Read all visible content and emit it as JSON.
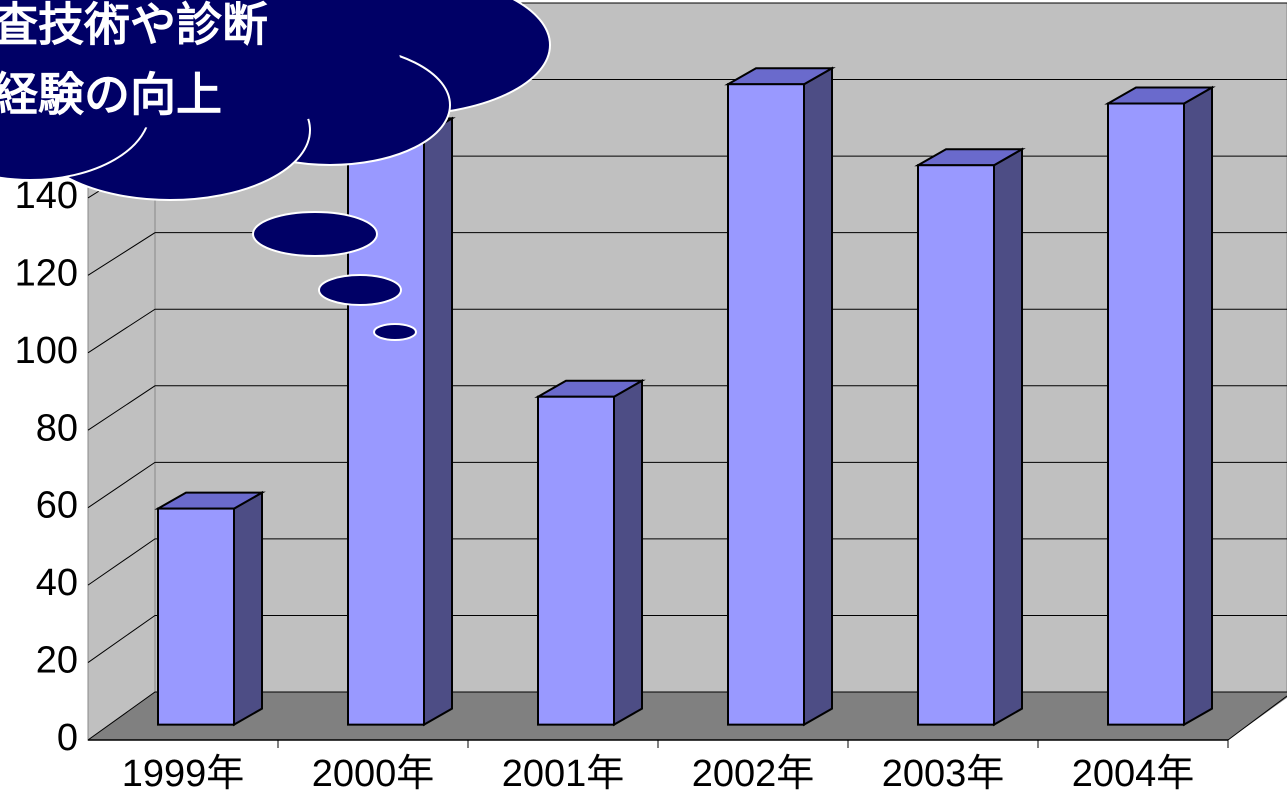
{
  "chart_data": {
    "type": "bar3d",
    "annotations": [
      "査技術や診断",
      "経験の向上"
    ],
    "categories": [
      "1999年",
      "2000年",
      "2001年",
      "2002年",
      "2003年",
      "2004年"
    ],
    "values": [
      56,
      153,
      85,
      166,
      145,
      161
    ],
    "color": "#9999ff",
    "side_color": "#4d4d85",
    "top_color": "#6a6acc",
    "wall_color": "#c0c0c0",
    "floor_color": "#808080",
    "ylim": [
      0,
      180
    ],
    "yticks": [
      0,
      20,
      40,
      60,
      80,
      100,
      120,
      140,
      160,
      180
    ],
    "grid": true
  }
}
